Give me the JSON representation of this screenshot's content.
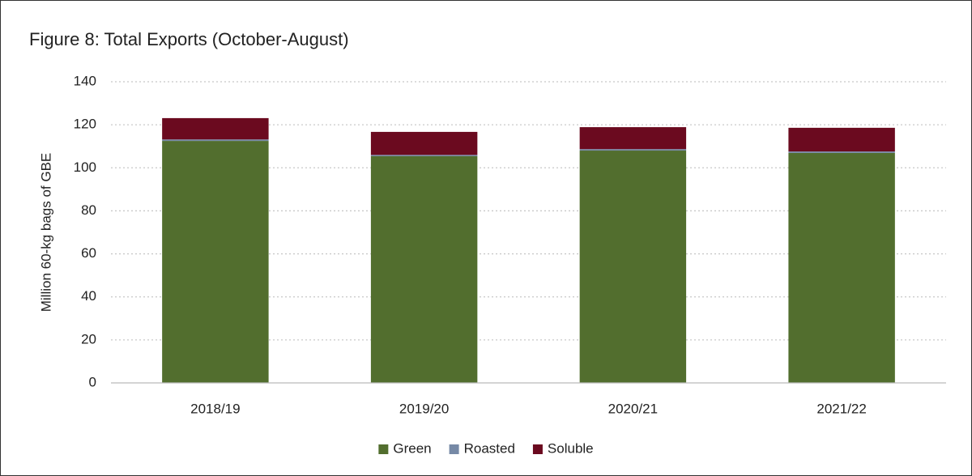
{
  "chart_data": {
    "type": "stacked_bar",
    "title": "Figure 8: Total Exports (October-August)",
    "y_label": "Million 60-kg bags of GBE",
    "categories": [
      "2018/19",
      "2019/20",
      "2020/21",
      "2021/22"
    ],
    "series": [
      {
        "name": "Green",
        "color": "#526e2e",
        "values": [
          112.5,
          105.4,
          108.0,
          106.9
        ]
      },
      {
        "name": "Roasted",
        "color": "#7689a6",
        "values": [
          0.7,
          0.6,
          0.7,
          0.7
        ]
      },
      {
        "name": "Soluble",
        "color": "#6b0a1f",
        "values": [
          9.9,
          10.7,
          10.2,
          11.0
        ]
      }
    ],
    "ylim": [
      0,
      140
    ],
    "yticks": [
      0,
      20,
      40,
      60,
      80,
      100,
      120,
      140
    ],
    "grid": true,
    "legend": "bottom"
  }
}
